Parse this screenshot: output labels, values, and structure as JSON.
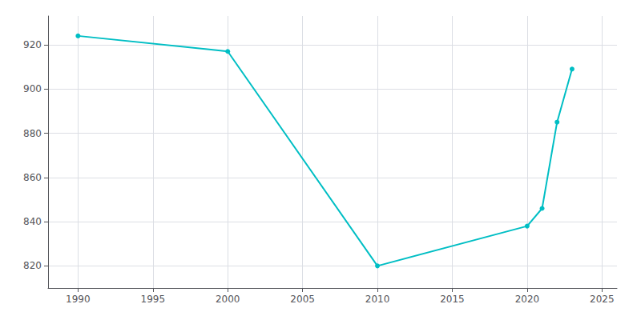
{
  "chart_data": {
    "type": "line",
    "x": [
      1990,
      2000,
      2010,
      2020,
      2021,
      2022,
      2023
    ],
    "values": [
      924,
      917,
      820,
      838,
      846,
      885,
      909
    ],
    "color": "#00BEC4",
    "marker": "circle",
    "xlim": [
      1988,
      2026
    ],
    "ylim": [
      810,
      933
    ],
    "xticks": [
      1990,
      1995,
      2000,
      2005,
      2010,
      2015,
      2020,
      2025
    ],
    "yticks": [
      820,
      840,
      860,
      880,
      900,
      920
    ],
    "grid": true
  }
}
